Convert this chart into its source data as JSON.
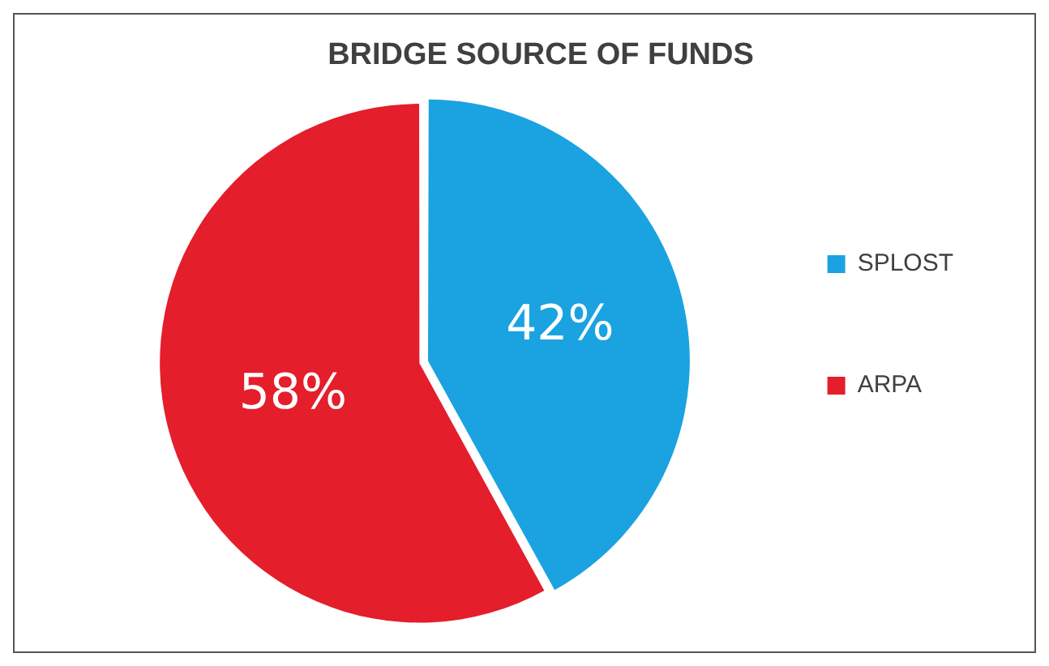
{
  "chart_data": {
    "type": "pie",
    "title": "BRIDGE SOURCE OF FUNDS",
    "categories": [
      "SPLOST",
      "ARPA"
    ],
    "values": [
      42,
      58
    ],
    "colors": [
      "#1aa3e0",
      "#e41e2b"
    ],
    "value_labels": [
      "42%",
      "58%"
    ],
    "legend": "right"
  }
}
